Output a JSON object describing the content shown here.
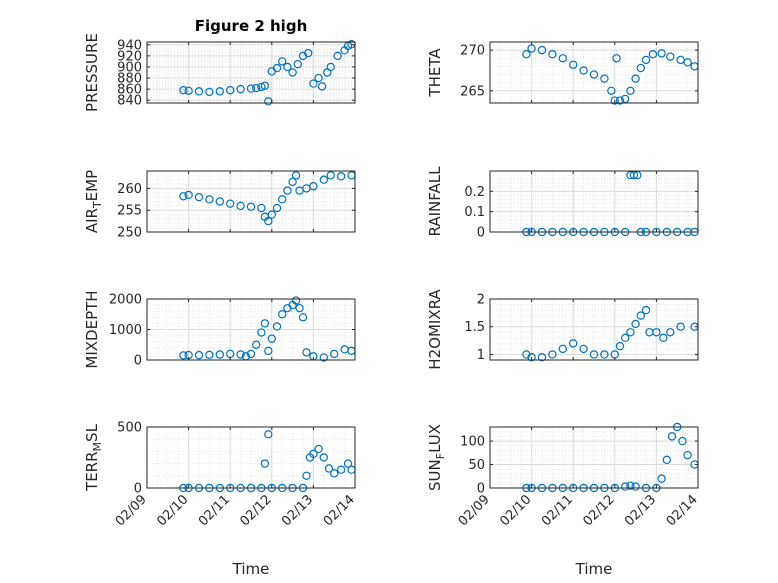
{
  "figure": {
    "title": "Figure 2 high",
    "marker_color": "#0072bd",
    "x_axis_label": "Time"
  },
  "chart_data": [
    {
      "type": "scatter",
      "ylabel": "PRESSURE",
      "xlim": [
        "2013-02-09",
        "2013-02-14"
      ],
      "ylim": [
        835,
        945
      ],
      "yticks": [
        840,
        860,
        880,
        900,
        920,
        940
      ],
      "xticks": [
        "02/09",
        "02/10",
        "02/11",
        "02/12",
        "02/13",
        "02/14"
      ],
      "xtick_labels_visible": false,
      "grid": true,
      "points": [
        [
          "2013-02-09T21:00",
          858
        ],
        [
          "2013-02-10T00:00",
          857
        ],
        [
          "2013-02-10T06:00",
          856
        ],
        [
          "2013-02-10T12:00",
          855
        ],
        [
          "2013-02-10T18:00",
          856
        ],
        [
          "2013-02-11T00:00",
          858
        ],
        [
          "2013-02-11T06:00",
          860
        ],
        [
          "2013-02-11T12:00",
          861
        ],
        [
          "2013-02-11T15:00",
          862
        ],
        [
          "2013-02-11T18:00",
          864
        ],
        [
          "2013-02-11T20:00",
          866
        ],
        [
          "2013-02-11T22:00",
          838
        ],
        [
          "2013-02-12T00:00",
          892
        ],
        [
          "2013-02-12T03:00",
          898
        ],
        [
          "2013-02-12T06:00",
          910
        ],
        [
          "2013-02-12T09:00",
          900
        ],
        [
          "2013-02-12T12:00",
          890
        ],
        [
          "2013-02-12T15:00",
          905
        ],
        [
          "2013-02-12T18:00",
          920
        ],
        [
          "2013-02-12T21:00",
          925
        ],
        [
          "2013-02-13T00:00",
          870
        ],
        [
          "2013-02-13T03:00",
          880
        ],
        [
          "2013-02-13T05:00",
          865
        ],
        [
          "2013-02-13T08:00",
          890
        ],
        [
          "2013-02-13T10:00",
          900
        ],
        [
          "2013-02-13T14:00",
          920
        ],
        [
          "2013-02-13T18:00",
          930
        ],
        [
          "2013-02-13T20:00",
          938
        ],
        [
          "2013-02-13T22:00",
          941
        ]
      ]
    },
    {
      "type": "scatter",
      "ylabel": "THETA",
      "xlim": [
        "2013-02-09",
        "2013-02-14"
      ],
      "ylim": [
        263.5,
        271
      ],
      "yticks": [
        265,
        270
      ],
      "xticks": [
        "02/09",
        "02/10",
        "02/11",
        "02/12",
        "02/13",
        "02/14"
      ],
      "xtick_labels_visible": false,
      "grid": true,
      "points": [
        [
          "2013-02-09T21:00",
          269.5
        ],
        [
          "2013-02-10T00:00",
          270.2
        ],
        [
          "2013-02-10T06:00",
          270.0
        ],
        [
          "2013-02-10T12:00",
          269.5
        ],
        [
          "2013-02-10T18:00",
          269.0
        ],
        [
          "2013-02-11T00:00",
          268.2
        ],
        [
          "2013-02-11T06:00",
          267.5
        ],
        [
          "2013-02-11T12:00",
          267.0
        ],
        [
          "2013-02-11T18:00",
          266.5
        ],
        [
          "2013-02-11T22:00",
          265.0
        ],
        [
          "2013-02-12T00:00",
          263.8
        ],
        [
          "2013-02-12T01:00",
          269.0
        ],
        [
          "2013-02-12T03:00",
          263.8
        ],
        [
          "2013-02-12T06:00",
          264.0
        ],
        [
          "2013-02-12T09:00",
          265.0
        ],
        [
          "2013-02-12T12:00",
          266.5
        ],
        [
          "2013-02-12T15:00",
          267.8
        ],
        [
          "2013-02-12T18:00",
          268.8
        ],
        [
          "2013-02-12T22:00",
          269.5
        ],
        [
          "2013-02-13T03:00",
          269.6
        ],
        [
          "2013-02-13T08:00",
          269.2
        ],
        [
          "2013-02-13T14:00",
          268.8
        ],
        [
          "2013-02-13T18:00",
          268.5
        ],
        [
          "2013-02-13T22:00",
          268.0
        ]
      ]
    },
    {
      "type": "scatter",
      "ylabel": "AIR_TEMP",
      "xlim": [
        "2013-02-09",
        "2013-02-14"
      ],
      "ylim": [
        250,
        264
      ],
      "yticks": [
        250,
        255,
        260
      ],
      "xticks": [
        "02/09",
        "02/10",
        "02/11",
        "02/12",
        "02/13",
        "02/14"
      ],
      "xtick_labels_visible": false,
      "grid": true,
      "points": [
        [
          "2013-02-09T21:00",
          258.2
        ],
        [
          "2013-02-10T00:00",
          258.5
        ],
        [
          "2013-02-10T06:00",
          258.0
        ],
        [
          "2013-02-10T12:00",
          257.5
        ],
        [
          "2013-02-10T18:00",
          257.0
        ],
        [
          "2013-02-11T00:00",
          256.5
        ],
        [
          "2013-02-11T06:00",
          256.0
        ],
        [
          "2013-02-11T12:00",
          255.8
        ],
        [
          "2013-02-11T18:00",
          255.5
        ],
        [
          "2013-02-11T20:00",
          253.5
        ],
        [
          "2013-02-11T22:00",
          252.5
        ],
        [
          "2013-02-12T00:00",
          254.0
        ],
        [
          "2013-02-12T03:00",
          255.5
        ],
        [
          "2013-02-12T06:00",
          257.5
        ],
        [
          "2013-02-12T09:00",
          259.5
        ],
        [
          "2013-02-12T12:00",
          261.5
        ],
        [
          "2013-02-12T14:00",
          263.0
        ],
        [
          "2013-02-12T16:00",
          259.5
        ],
        [
          "2013-02-12T20:00",
          260.0
        ],
        [
          "2013-02-13T00:00",
          260.5
        ],
        [
          "2013-02-13T06:00",
          262.0
        ],
        [
          "2013-02-13T10:00",
          263.0
        ],
        [
          "2013-02-13T16:00",
          262.8
        ],
        [
          "2013-02-13T22:00",
          263.0
        ]
      ]
    },
    {
      "type": "scatter",
      "ylabel": "RAINFALL",
      "xlim": [
        "2013-02-09",
        "2013-02-14"
      ],
      "ylim": [
        0,
        0.3
      ],
      "yticks": [
        0,
        0.1,
        0.2
      ],
      "xticks": [
        "02/09",
        "02/10",
        "02/11",
        "02/12",
        "02/13",
        "02/14"
      ],
      "xtick_labels_visible": false,
      "grid": true,
      "points": [
        [
          "2013-02-09T21:00",
          0
        ],
        [
          "2013-02-10T00:00",
          0
        ],
        [
          "2013-02-10T06:00",
          0
        ],
        [
          "2013-02-10T12:00",
          0
        ],
        [
          "2013-02-10T18:00",
          0
        ],
        [
          "2013-02-11T00:00",
          0
        ],
        [
          "2013-02-11T06:00",
          0
        ],
        [
          "2013-02-11T12:00",
          0
        ],
        [
          "2013-02-11T18:00",
          0
        ],
        [
          "2013-02-12T00:00",
          0
        ],
        [
          "2013-02-12T06:00",
          0
        ],
        [
          "2013-02-12T09:00",
          0.28
        ],
        [
          "2013-02-12T11:00",
          0.28
        ],
        [
          "2013-02-12T13:00",
          0.28
        ],
        [
          "2013-02-12T15:00",
          0
        ],
        [
          "2013-02-12T18:00",
          0
        ],
        [
          "2013-02-13T00:00",
          0
        ],
        [
          "2013-02-13T06:00",
          0
        ],
        [
          "2013-02-13T12:00",
          0
        ],
        [
          "2013-02-13T18:00",
          0
        ],
        [
          "2013-02-13T22:00",
          0
        ]
      ]
    },
    {
      "type": "scatter",
      "ylabel": "MIXDEPTH",
      "xlim": [
        "2013-02-09",
        "2013-02-14"
      ],
      "ylim": [
        0,
        2000
      ],
      "yticks": [
        0,
        1000,
        2000
      ],
      "xticks": [
        "02/09",
        "02/10",
        "02/11",
        "02/12",
        "02/13",
        "02/14"
      ],
      "xtick_labels_visible": false,
      "grid": true,
      "points": [
        [
          "2013-02-09T21:00",
          150
        ],
        [
          "2013-02-10T00:00",
          160
        ],
        [
          "2013-02-10T06:00",
          160
        ],
        [
          "2013-02-10T12:00",
          170
        ],
        [
          "2013-02-10T18:00",
          180
        ],
        [
          "2013-02-11T00:00",
          200
        ],
        [
          "2013-02-11T06:00",
          180
        ],
        [
          "2013-02-11T09:00",
          120
        ],
        [
          "2013-02-11T12:00",
          200
        ],
        [
          "2013-02-11T15:00",
          500
        ],
        [
          "2013-02-11T18:00",
          900
        ],
        [
          "2013-02-11T20:00",
          1200
        ],
        [
          "2013-02-11T22:00",
          300
        ],
        [
          "2013-02-12T00:00",
          700
        ],
        [
          "2013-02-12T03:00",
          1100
        ],
        [
          "2013-02-12T06:00",
          1500
        ],
        [
          "2013-02-12T09:00",
          1700
        ],
        [
          "2013-02-12T12:00",
          1800
        ],
        [
          "2013-02-12T14:00",
          1950
        ],
        [
          "2013-02-12T16:00",
          1700
        ],
        [
          "2013-02-12T18:00",
          1400
        ],
        [
          "2013-02-12T20:00",
          250
        ],
        [
          "2013-02-13T00:00",
          120
        ],
        [
          "2013-02-13T06:00",
          80
        ],
        [
          "2013-02-13T12:00",
          200
        ],
        [
          "2013-02-13T18:00",
          350
        ],
        [
          "2013-02-13T22:00",
          300
        ]
      ]
    },
    {
      "type": "scatter",
      "ylabel": "H2OMIXRA",
      "xlim": [
        "2013-02-09",
        "2013-02-14"
      ],
      "ylim": [
        0.9,
        2
      ],
      "yticks": [
        1,
        1.5,
        2
      ],
      "xticks": [
        "02/09",
        "02/10",
        "02/11",
        "02/12",
        "02/13",
        "02/14"
      ],
      "xtick_labels_visible": false,
      "grid": true,
      "points": [
        [
          "2013-02-09T21:00",
          1.0
        ],
        [
          "2013-02-10T00:00",
          0.95
        ],
        [
          "2013-02-10T06:00",
          0.95
        ],
        [
          "2013-02-10T12:00",
          1.0
        ],
        [
          "2013-02-10T18:00",
          1.1
        ],
        [
          "2013-02-11T00:00",
          1.2
        ],
        [
          "2013-02-11T06:00",
          1.1
        ],
        [
          "2013-02-11T12:00",
          1.0
        ],
        [
          "2013-02-11T18:00",
          1.0
        ],
        [
          "2013-02-12T00:00",
          1.0
        ],
        [
          "2013-02-12T03:00",
          1.15
        ],
        [
          "2013-02-12T06:00",
          1.3
        ],
        [
          "2013-02-12T09:00",
          1.4
        ],
        [
          "2013-02-12T12:00",
          1.55
        ],
        [
          "2013-02-12T15:00",
          1.7
        ],
        [
          "2013-02-12T18:00",
          1.8
        ],
        [
          "2013-02-12T20:00",
          1.4
        ],
        [
          "2013-02-13T00:00",
          1.4
        ],
        [
          "2013-02-13T04:00",
          1.3
        ],
        [
          "2013-02-13T08:00",
          1.4
        ],
        [
          "2013-02-13T14:00",
          1.5
        ],
        [
          "2013-02-13T22:00",
          1.5
        ]
      ]
    },
    {
      "type": "scatter",
      "ylabel": "TERR_MSL",
      "xlim": [
        "2013-02-09",
        "2013-02-14"
      ],
      "ylim": [
        0,
        500
      ],
      "yticks": [
        0,
        500
      ],
      "xticks": [
        "02/09",
        "02/10",
        "02/11",
        "02/12",
        "02/13",
        "02/14"
      ],
      "xtick_labels_visible": true,
      "grid": true,
      "points": [
        [
          "2013-02-09T21:00",
          0
        ],
        [
          "2013-02-10T00:00",
          0
        ],
        [
          "2013-02-10T06:00",
          0
        ],
        [
          "2013-02-10T12:00",
          0
        ],
        [
          "2013-02-10T18:00",
          0
        ],
        [
          "2013-02-11T00:00",
          0
        ],
        [
          "2013-02-11T06:00",
          0
        ],
        [
          "2013-02-11T12:00",
          0
        ],
        [
          "2013-02-11T18:00",
          0
        ],
        [
          "2013-02-11T20:00",
          200
        ],
        [
          "2013-02-11T22:00",
          440
        ],
        [
          "2013-02-12T00:00",
          0
        ],
        [
          "2013-02-12T06:00",
          0
        ],
        [
          "2013-02-12T12:00",
          0
        ],
        [
          "2013-02-12T18:00",
          0
        ],
        [
          "2013-02-12T20:00",
          100
        ],
        [
          "2013-02-12T22:00",
          250
        ],
        [
          "2013-02-13T00:00",
          280
        ],
        [
          "2013-02-13T03:00",
          320
        ],
        [
          "2013-02-13T06:00",
          250
        ],
        [
          "2013-02-13T09:00",
          160
        ],
        [
          "2013-02-13T12:00",
          120
        ],
        [
          "2013-02-13T16:00",
          150
        ],
        [
          "2013-02-13T20:00",
          200
        ],
        [
          "2013-02-13T22:00",
          150
        ]
      ]
    },
    {
      "type": "scatter",
      "ylabel": "SUN_FLUX",
      "xlim": [
        "2013-02-09",
        "2013-02-14"
      ],
      "ylim": [
        0,
        130
      ],
      "yticks": [
        0,
        50,
        100
      ],
      "xticks": [
        "02/09",
        "02/10",
        "02/11",
        "02/12",
        "02/13",
        "02/14"
      ],
      "xtick_labels_visible": true,
      "grid": true,
      "points": [
        [
          "2013-02-09T21:00",
          0
        ],
        [
          "2013-02-10T00:00",
          0
        ],
        [
          "2013-02-10T06:00",
          0
        ],
        [
          "2013-02-10T12:00",
          0
        ],
        [
          "2013-02-10T18:00",
          0
        ],
        [
          "2013-02-11T00:00",
          0
        ],
        [
          "2013-02-11T06:00",
          0
        ],
        [
          "2013-02-11T12:00",
          0
        ],
        [
          "2013-02-11T18:00",
          0
        ],
        [
          "2013-02-12T00:00",
          0
        ],
        [
          "2013-02-12T06:00",
          3
        ],
        [
          "2013-02-12T09:00",
          5
        ],
        [
          "2013-02-12T12:00",
          3
        ],
        [
          "2013-02-12T18:00",
          0
        ],
        [
          "2013-02-13T00:00",
          0
        ],
        [
          "2013-02-13T03:00",
          20
        ],
        [
          "2013-02-13T06:00",
          60
        ],
        [
          "2013-02-13T09:00",
          110
        ],
        [
          "2013-02-13T12:00",
          130
        ],
        [
          "2013-02-13T15:00",
          100
        ],
        [
          "2013-02-13T18:00",
          70
        ],
        [
          "2013-02-13T22:00",
          50
        ]
      ]
    }
  ]
}
